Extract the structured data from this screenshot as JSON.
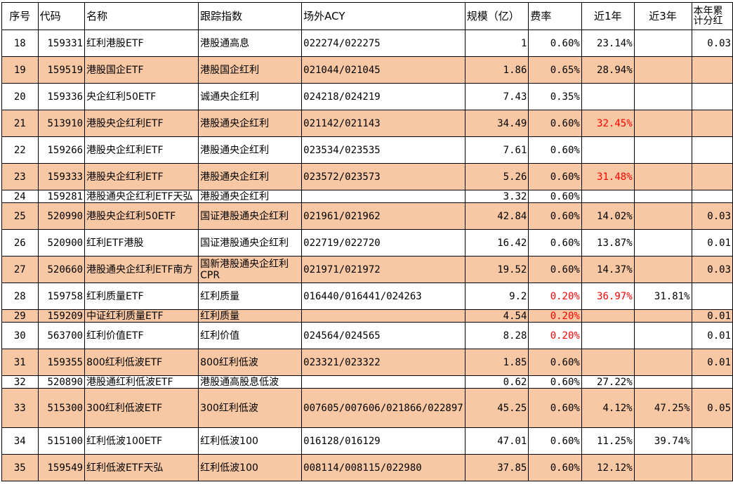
{
  "headers": [
    "序号",
    "代码",
    "名称",
    "跟踪指数",
    "场外ACY",
    "规模（亿）",
    "费率",
    "近1年",
    "近3年",
    "本年累计分红"
  ],
  "rows": [
    {
      "idx": "18",
      "code": "159331",
      "name": "红利港股ETF",
      "index": "港股通高息",
      "acy": "022274/022275",
      "scale": "1",
      "fee": "0.60%",
      "y1": "23.14%",
      "y3": "",
      "div": "0.03",
      "shade": false,
      "fee_red": false,
      "y1_red": false
    },
    {
      "idx": "19",
      "code": "159519",
      "name": "港股国企ETF",
      "index": "港股国企红利",
      "acy": "021044/021045",
      "scale": "1.86",
      "fee": "0.65%",
      "y1": "28.94%",
      "y3": "",
      "div": "",
      "shade": true,
      "fee_red": false,
      "y1_red": false
    },
    {
      "idx": "20",
      "code": "159336",
      "name": "央企红利50ETF",
      "index": "诚通央企红利",
      "acy": "024218/024219",
      "scale": "7.43",
      "fee": "0.35%",
      "y1": "",
      "y3": "",
      "div": "",
      "shade": false,
      "fee_red": false,
      "y1_red": false
    },
    {
      "idx": "21",
      "code": "513910",
      "name": "港股央企红利ETF",
      "index": "港股通央企红利",
      "acy": "021142/021143",
      "scale": "34.49",
      "fee": "0.60%",
      "y1": "32.45%",
      "y3": "",
      "div": "",
      "shade": true,
      "fee_red": false,
      "y1_red": true
    },
    {
      "idx": "22",
      "code": "159266",
      "name": "港股央企红利ETF",
      "index": "港股通央企红利",
      "acy": "023534/023535",
      "scale": "7.61",
      "fee": "0.60%",
      "y1": "",
      "y3": "",
      "div": "",
      "shade": false,
      "fee_red": false,
      "y1_red": false
    },
    {
      "idx": "23",
      "code": "159333",
      "name": "港股央企红利ETF",
      "index": "港股通央企红利",
      "acy": "023572/023573",
      "scale": "5.26",
      "fee": "0.60%",
      "y1": "31.48%",
      "y3": "",
      "div": "",
      "shade": true,
      "fee_red": false,
      "y1_red": true
    },
    {
      "idx": "24",
      "code": "159281",
      "name": "港股通央企红利ETF天弘",
      "index": "港股通央企红利",
      "acy": "",
      "scale": "3.32",
      "fee": "0.60%",
      "y1": "",
      "y3": "",
      "div": "",
      "shade": false,
      "fee_red": false,
      "y1_red": false
    },
    {
      "idx": "25",
      "code": "520990",
      "name": "港股央企红利50ETF",
      "index": "国证港股通央企红利",
      "acy": "021961/021962",
      "scale": "42.84",
      "fee": "0.60%",
      "y1": "14.02%",
      "y3": "",
      "div": "0.03",
      "shade": true,
      "fee_red": false,
      "y1_red": false
    },
    {
      "idx": "26",
      "code": "520900",
      "name": "红利ETF港股",
      "index": "国证港股通央企红利",
      "acy": "022719/022720",
      "scale": "16.42",
      "fee": "0.60%",
      "y1": "13.87%",
      "y3": "",
      "div": "0.01",
      "shade": false,
      "fee_red": false,
      "y1_red": false
    },
    {
      "idx": "27",
      "code": "520660",
      "name": "港股通央企红利ETF南方",
      "index": "国新港股通央企红利CPR",
      "acy": "021971/021972",
      "scale": "19.52",
      "fee": "0.60%",
      "y1": "14.37%",
      "y3": "",
      "div": "0.03",
      "shade": true,
      "fee_red": false,
      "y1_red": false
    },
    {
      "idx": "28",
      "code": "159758",
      "name": "红利质量ETF",
      "index": "红利质量",
      "acy": "016440/016441/024263",
      "scale": "9.2",
      "fee": "0.20%",
      "y1": "36.97%",
      "y3": "31.81%",
      "div": "",
      "shade": false,
      "fee_red": true,
      "y1_red": true
    },
    {
      "idx": "29",
      "code": "159209",
      "name": "中证红利质量ETF",
      "index": "红利质量",
      "acy": "",
      "scale": "4.54",
      "fee": "0.20%",
      "y1": "",
      "y3": "",
      "div": "0.01",
      "shade": true,
      "fee_red": true,
      "y1_red": false
    },
    {
      "idx": "30",
      "code": "563700",
      "name": "红利价值ETF",
      "index": "红利价值",
      "acy": "024564/024565",
      "scale": "8.28",
      "fee": "0.20%",
      "y1": "",
      "y3": "",
      "div": "0.01",
      "shade": false,
      "fee_red": true,
      "y1_red": false
    },
    {
      "idx": "31",
      "code": "159355",
      "name": "800红利低波ETF",
      "index": "800红利低波",
      "acy": "023321/023322",
      "scale": "1.85",
      "fee": "0.60%",
      "y1": "",
      "y3": "",
      "div": "0.01",
      "shade": true,
      "fee_red": false,
      "y1_red": false
    },
    {
      "idx": "32",
      "code": "520890",
      "name": "港股通红利低波ETF",
      "index": "港股通高股息低波",
      "acy": "",
      "scale": "0.62",
      "fee": "0.60%",
      "y1": "27.22%",
      "y3": "",
      "div": "",
      "shade": false,
      "fee_red": false,
      "y1_red": false
    },
    {
      "idx": "33",
      "code": "515300",
      "name": "300红利低波ETF",
      "index": "300红利低波",
      "acy": "007605/007606/021866/022897",
      "scale": "45.25",
      "fee": "0.60%",
      "y1": "4.12%",
      "y3": "47.25%",
      "div": "0.05",
      "shade": true,
      "fee_red": false,
      "y1_red": false
    },
    {
      "idx": "34",
      "code": "515100",
      "name": "红利低波100ETF",
      "index": "红利低波100",
      "acy": "016128/016129",
      "scale": "47.01",
      "fee": "0.60%",
      "y1": "11.25%",
      "y3": "39.74%",
      "div": "",
      "shade": false,
      "fee_red": false,
      "y1_red": false
    },
    {
      "idx": "35",
      "code": "159549",
      "name": "红利低波ETF天弘",
      "index": "红利低波100",
      "acy": "008114/008115/022980",
      "scale": "37.85",
      "fee": "0.60%",
      "y1": "12.12%",
      "y3": "",
      "div": "",
      "shade": true,
      "fee_red": false,
      "y1_red": false
    }
  ],
  "colors": {
    "shade": "#f8c8a4",
    "highlight_text": "#ff0000"
  }
}
